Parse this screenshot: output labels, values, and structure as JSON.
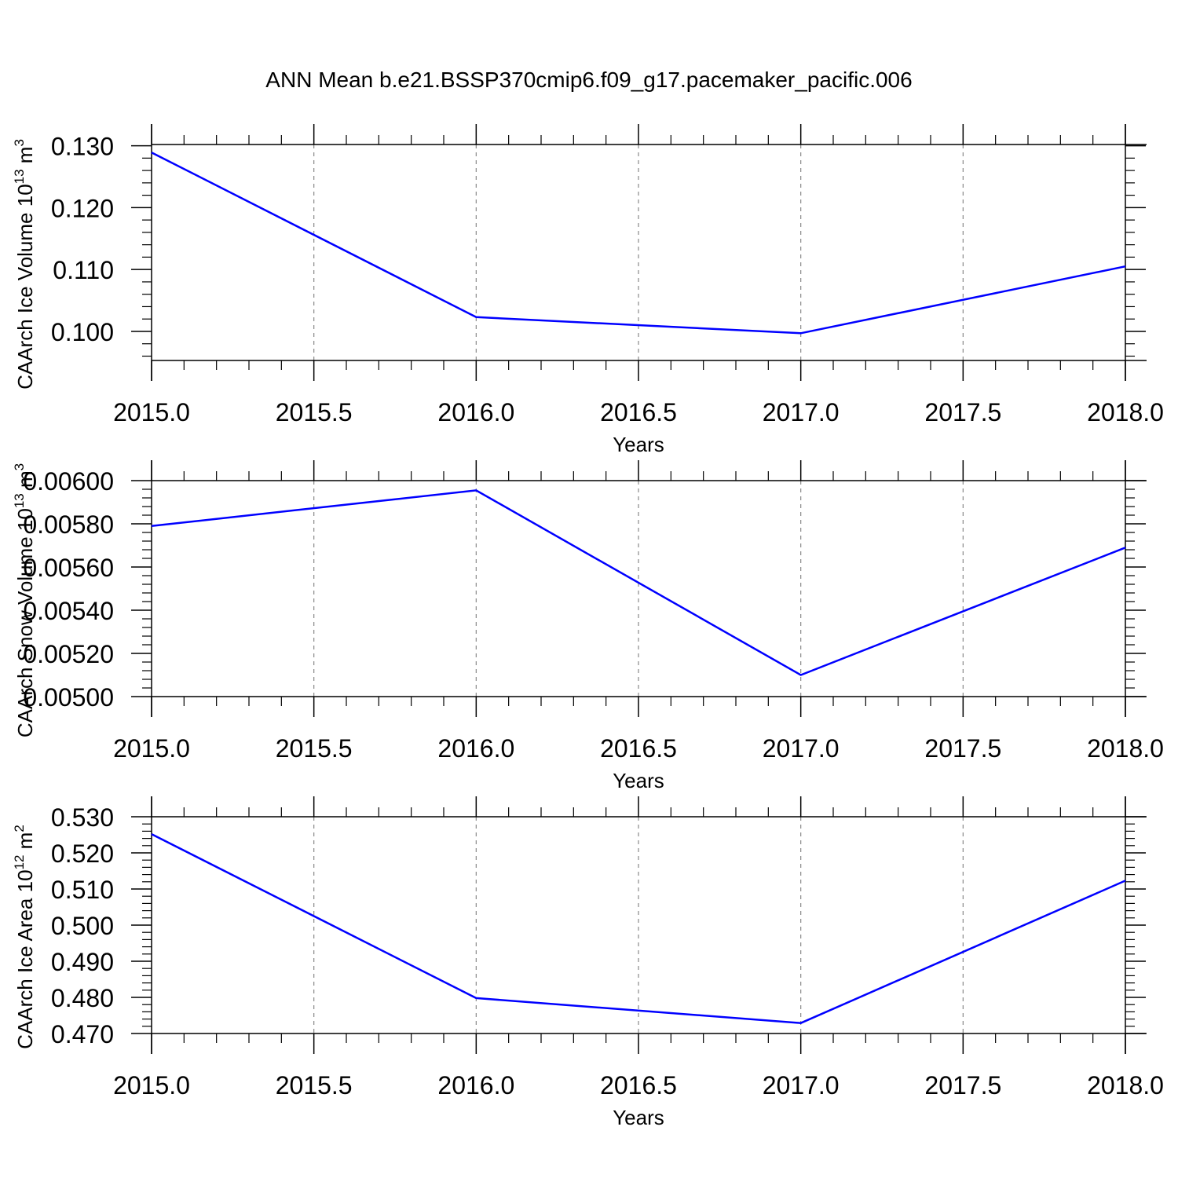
{
  "title": "ANN Mean b.e21.BSSP370cmip6.f09_g17.pacemaker_pacific.006",
  "chart_data": [
    {
      "type": "line",
      "xlabel": "Years",
      "ylabel_text": "CAArch Ice Volume 10",
      "ylabel_exp": "13",
      "ylabel_unit": "m",
      "ylabel_unit_exp": "3",
      "x": [
        2015,
        2016,
        2017,
        2018
      ],
      "values": [
        0.1289,
        0.1023,
        0.0997,
        0.1105
      ],
      "xlim": [
        2015,
        2018
      ],
      "ylim": [
        0.0953,
        0.1302
      ],
      "xticks": [
        2015,
        2015.5,
        2016,
        2016.5,
        2017,
        2017.5,
        2018
      ],
      "xtick_labels": [
        "2015.0",
        "2015.5",
        "2016.0",
        "2016.5",
        "2017.0",
        "2017.5",
        "2018.0"
      ],
      "yticks": [
        0.1,
        0.11,
        0.12,
        0.13
      ],
      "ytick_labels": [
        "0.100",
        "0.110",
        "0.120",
        "0.130"
      ],
      "yminor_step": 0.002,
      "line_color": "#0000ff",
      "grid": "vertical dashed"
    },
    {
      "type": "line",
      "xlabel": "Years",
      "ylabel_text": "CAArch Snow Volume 10",
      "ylabel_exp": "13",
      "ylabel_unit": "m",
      "ylabel_unit_exp": "3",
      "x": [
        2015,
        2016,
        2017,
        2018
      ],
      "values": [
        0.00579,
        0.005955,
        0.0051,
        0.00569
      ],
      "xlim": [
        2015,
        2018
      ],
      "ylim": [
        0.005,
        0.006
      ],
      "xticks": [
        2015,
        2015.5,
        2016,
        2016.5,
        2017,
        2017.5,
        2018
      ],
      "xtick_labels": [
        "2015.0",
        "2015.5",
        "2016.0",
        "2016.5",
        "2017.0",
        "2017.5",
        "2018.0"
      ],
      "yticks": [
        0.005,
        0.0052,
        0.0054,
        0.0056,
        0.0058,
        0.006
      ],
      "ytick_labels": [
        "0.00500",
        "0.00520",
        "0.00540",
        "0.00560",
        "0.00580",
        "0.00600"
      ],
      "yminor_step": 4e-05,
      "line_color": "#0000ff",
      "grid": "vertical dashed"
    },
    {
      "type": "line",
      "xlabel": "Years",
      "ylabel_text": "CAArch Ice Area 10",
      "ylabel_exp": "12",
      "ylabel_unit": "m",
      "ylabel_unit_exp": "2",
      "x": [
        2015,
        2016,
        2017,
        2018
      ],
      "values": [
        0.5252,
        0.4798,
        0.4729,
        0.5123
      ],
      "xlim": [
        2015,
        2018
      ],
      "ylim": [
        0.47,
        0.53
      ],
      "xticks": [
        2015,
        2015.5,
        2016,
        2016.5,
        2017,
        2017.5,
        2018
      ],
      "xtick_labels": [
        "2015.0",
        "2015.5",
        "2016.0",
        "2016.5",
        "2017.0",
        "2017.5",
        "2018.0"
      ],
      "yticks": [
        0.47,
        0.48,
        0.49,
        0.5,
        0.51,
        0.52,
        0.53
      ],
      "ytick_labels": [
        "0.470",
        "0.480",
        "0.490",
        "0.500",
        "0.510",
        "0.520",
        "0.530"
      ],
      "yminor_step": 0.002,
      "line_color": "#0000ff",
      "grid": "vertical dashed"
    }
  ]
}
